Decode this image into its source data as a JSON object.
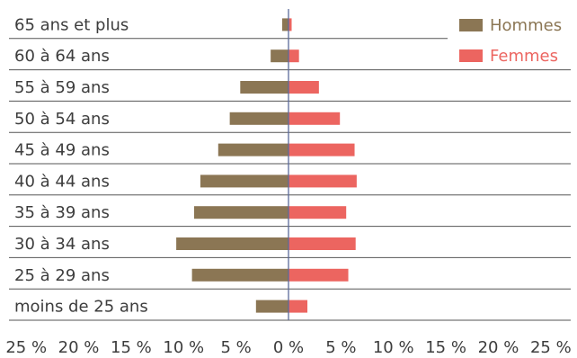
{
  "chart_data": {
    "type": "bar",
    "orientation": "horizontal",
    "categories": [
      "65 ans et plus",
      "60 à 64 ans",
      "55 à 59 ans",
      "50 à 54 ans",
      "45 à 49 ans",
      "40 à 44 ans",
      "35 à 39 ans",
      "30 à 34 ans",
      "25 à 29 ans",
      "moins de 25 ans"
    ],
    "series": [
      {
        "name": "Hommes",
        "color": "#8b7654",
        "values": [
          -0.6,
          -1.7,
          -4.6,
          -5.6,
          -6.7,
          -8.4,
          -9.0,
          -10.7,
          -9.2,
          -3.1
        ]
      },
      {
        "name": "Femmes",
        "color": "#ec6560",
        "values": [
          0.3,
          1.0,
          2.9,
          4.9,
          6.3,
          6.5,
          5.5,
          6.4,
          5.7,
          1.8
        ]
      }
    ],
    "xlim": [
      -27.5,
      27.5
    ],
    "xticks": [
      {
        "value": -25,
        "label": "25 %"
      },
      {
        "value": -20,
        "label": "20 %"
      },
      {
        "value": -15,
        "label": "15 %"
      },
      {
        "value": -10,
        "label": "10 %"
      },
      {
        "value": -5,
        "label": "5 %"
      },
      {
        "value": 0,
        "label": "0 %"
      },
      {
        "value": 5,
        "label": "5 %"
      },
      {
        "value": 10,
        "label": "10 %"
      },
      {
        "value": 15,
        "label": "15 %"
      },
      {
        "value": 20,
        "label": "20 %"
      },
      {
        "value": 25,
        "label": "25 %"
      }
    ],
    "title": "",
    "xlabel": "",
    "ylabel": "",
    "legend_position": "top-right",
    "grid": "horizontal row separators",
    "colors": {
      "text": "#3d3d3d",
      "separator": "#555555",
      "axis": "#5b6a9a"
    }
  }
}
